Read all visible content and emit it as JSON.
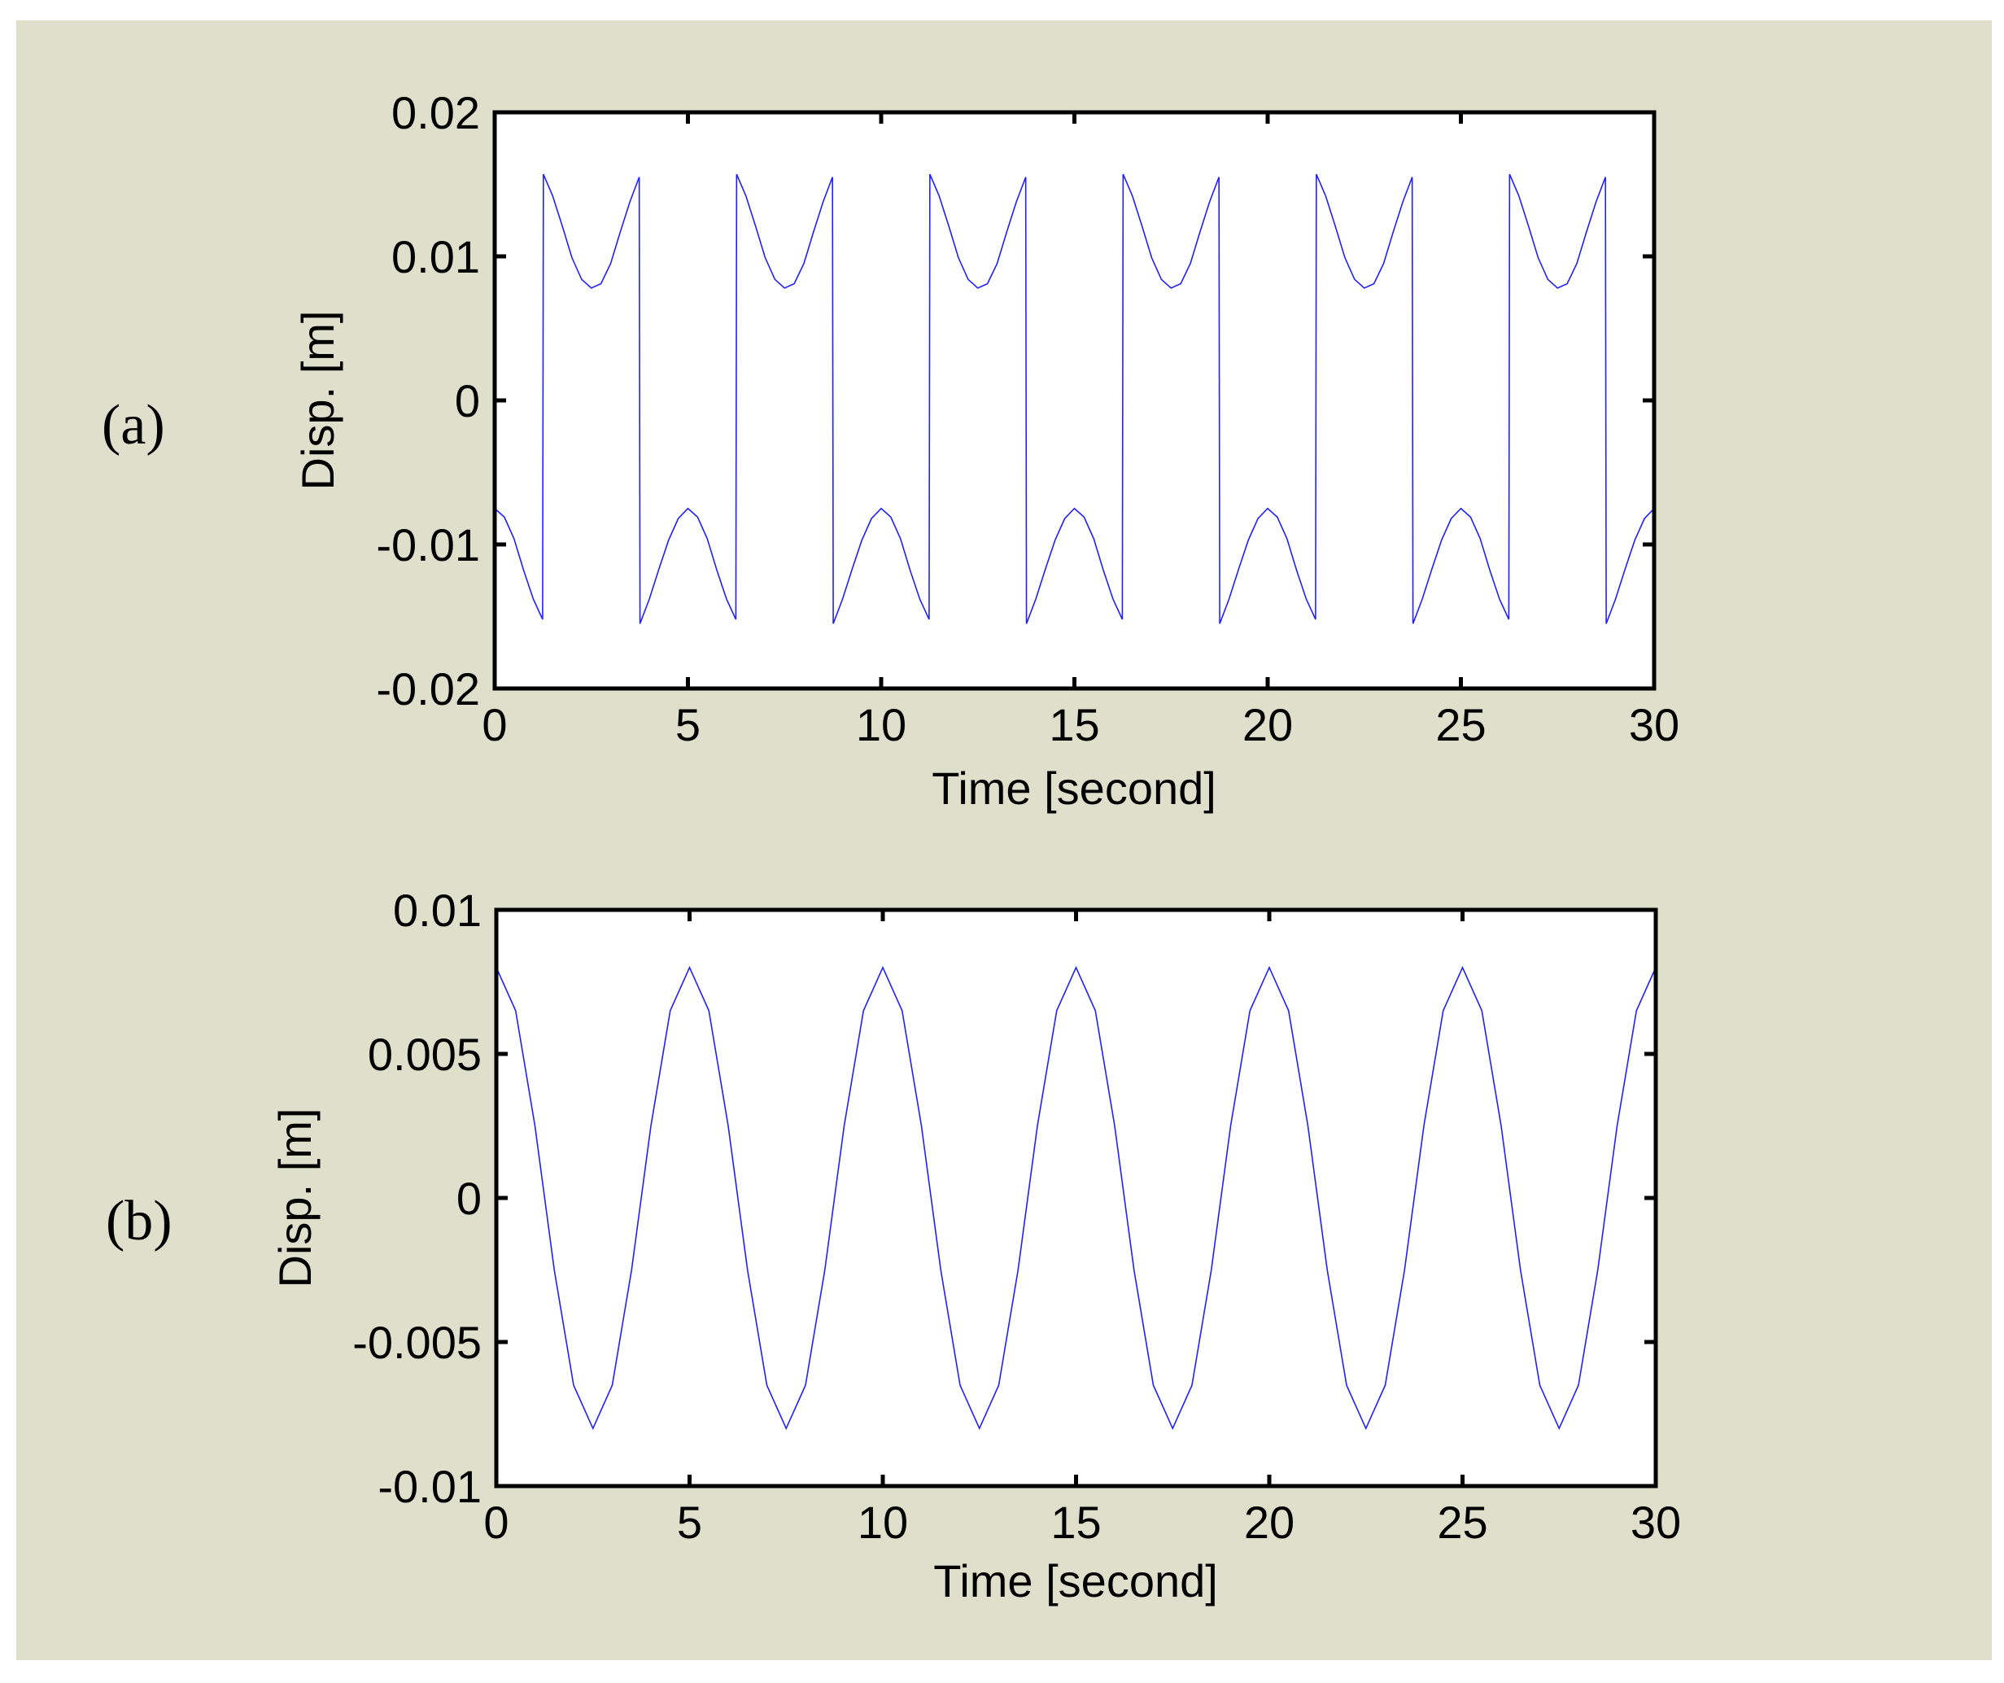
{
  "figure": {
    "background_color": "#dfe0cc",
    "plot_color": "#ffffff",
    "line_color": "#2020ff"
  },
  "chart_data": [
    {
      "type": "line",
      "panel_label": "(a)",
      "xlabel": "Time [second]",
      "ylabel": "Disp. [m]",
      "xlim": [
        0,
        30
      ],
      "ylim": [
        -0.02,
        0.02
      ],
      "x_ticks": [
        0,
        5,
        10,
        15,
        20,
        25,
        30
      ],
      "x_tick_labels": [
        "0",
        "5",
        "10",
        "15",
        "20",
        "25",
        "30"
      ],
      "y_ticks": [
        0.02,
        0.01,
        0,
        -0.01,
        -0.02
      ],
      "y_tick_labels": [
        "0.02",
        "0.01",
        "0",
        "-0.01",
        "-0.02"
      ],
      "grid": false,
      "series": [
        {
          "x": [
            0,
            0.25,
            0.5,
            0.75,
            1.0,
            1.24,
            1.26,
            1.5,
            1.75,
            2.0,
            2.25,
            2.5,
            2.75,
            3.0,
            3.25,
            3.5,
            3.74,
            3.76,
            4.0,
            4.25,
            4.5,
            4.75,
            5.0,
            5.25,
            5.5,
            5.75,
            6.0,
            6.24,
            6.26,
            6.5,
            6.75,
            7.0,
            7.25,
            7.5,
            7.75,
            8.0,
            8.25,
            8.5,
            8.74,
            8.76,
            9.0,
            9.25,
            9.5,
            9.75,
            10.0,
            10.25,
            10.5,
            10.75,
            11.0,
            11.24,
            11.26,
            11.5,
            11.75,
            12.0,
            12.25,
            12.5,
            12.75,
            13.0,
            13.25,
            13.5,
            13.74,
            13.76,
            14.0,
            14.25,
            14.5,
            14.75,
            15.0,
            15.25,
            15.5,
            15.75,
            16.0,
            16.24,
            16.26,
            16.5,
            16.75,
            17.0,
            17.25,
            17.5,
            17.75,
            18.0,
            18.25,
            18.5,
            18.74,
            18.76,
            19.0,
            19.25,
            19.5,
            19.75,
            20.0,
            20.25,
            20.5,
            20.75,
            21.0,
            21.24,
            21.26,
            21.5,
            21.75,
            22.0,
            22.25,
            22.5,
            22.75,
            23.0,
            23.25,
            23.5,
            23.74,
            23.76,
            24.0,
            24.25,
            24.5,
            24.75,
            25.0,
            25.25,
            25.5,
            25.75,
            26.0,
            26.24,
            26.26,
            26.5,
            26.75,
            27.0,
            27.25,
            27.5,
            27.75,
            28.0,
            28.25,
            28.5,
            28.74,
            28.76,
            29.0,
            29.25,
            29.5,
            29.75,
            30.0
          ],
          "y": [
            -0.0075,
            -0.0081,
            -0.0096,
            -0.0118,
            -0.0138,
            -0.0152,
            0.0157,
            0.0142,
            0.0121,
            0.0099,
            0.0084,
            0.0078,
            0.0081,
            0.0095,
            0.0117,
            0.0138,
            0.0155,
            -0.0155,
            -0.0138,
            -0.0117,
            -0.0097,
            -0.0082,
            -0.0075,
            -0.0081,
            -0.0096,
            -0.0118,
            -0.0138,
            -0.0152,
            0.0157,
            0.0142,
            0.0121,
            0.0099,
            0.0084,
            0.0078,
            0.0081,
            0.0095,
            0.0117,
            0.0138,
            0.0155,
            -0.0155,
            -0.0138,
            -0.0117,
            -0.0097,
            -0.0082,
            -0.0075,
            -0.0081,
            -0.0096,
            -0.0118,
            -0.0138,
            -0.0152,
            0.0157,
            0.0142,
            0.0121,
            0.0099,
            0.0084,
            0.0078,
            0.0081,
            0.0095,
            0.0117,
            0.0138,
            0.0155,
            -0.0155,
            -0.0138,
            -0.0117,
            -0.0097,
            -0.0082,
            -0.0075,
            -0.0081,
            -0.0096,
            -0.0118,
            -0.0138,
            -0.0152,
            0.0157,
            0.0142,
            0.0121,
            0.0099,
            0.0084,
            0.0078,
            0.0081,
            0.0095,
            0.0117,
            0.0138,
            0.0155,
            -0.0155,
            -0.0138,
            -0.0117,
            -0.0097,
            -0.0082,
            -0.0075,
            -0.0081,
            -0.0096,
            -0.0118,
            -0.0138,
            -0.0152,
            0.0157,
            0.0142,
            0.0121,
            0.0099,
            0.0084,
            0.0078,
            0.0081,
            0.0095,
            0.0117,
            0.0138,
            0.0155,
            -0.0155,
            -0.0138,
            -0.0117,
            -0.0097,
            -0.0082,
            -0.0075,
            -0.0081,
            -0.0096,
            -0.0118,
            -0.0138,
            -0.0152,
            0.0157,
            0.0142,
            0.0121,
            0.0099,
            0.0084,
            0.0078,
            0.0081,
            0.0095,
            0.0117,
            0.0138,
            0.0155,
            -0.0155,
            -0.0138,
            -0.0117,
            -0.0097,
            -0.0082,
            -0.0075
          ]
        }
      ]
    },
    {
      "type": "line",
      "panel_label": "(b)",
      "xlabel": "Time [second]",
      "ylabel": "Disp. [m]",
      "xlim": [
        0,
        30
      ],
      "ylim": [
        -0.01,
        0.01
      ],
      "x_ticks": [
        0,
        5,
        10,
        15,
        20,
        25,
        30
      ],
      "x_tick_labels": [
        "0",
        "5",
        "10",
        "15",
        "20",
        "25",
        "30"
      ],
      "y_ticks": [
        0.01,
        0.005,
        0,
        -0.005,
        -0.01
      ],
      "y_tick_labels": [
        "0.01",
        "0.005",
        "0",
        "-0.005",
        "-0.01"
      ],
      "grid": false,
      "series": [
        {
          "x": [
            0,
            0.5,
            1.0,
            1.5,
            2.0,
            2.5,
            3.0,
            3.5,
            4.0,
            4.5,
            5.0,
            5.5,
            6.0,
            6.5,
            7.0,
            7.5,
            8.0,
            8.5,
            9.0,
            9.5,
            10.0,
            10.5,
            11.0,
            11.5,
            12.0,
            12.5,
            13.0,
            13.5,
            14.0,
            14.5,
            15.0,
            15.5,
            16.0,
            16.5,
            17.0,
            17.5,
            18.0,
            18.5,
            19.0,
            19.5,
            20.0,
            20.5,
            21.0,
            21.5,
            22.0,
            22.5,
            23.0,
            23.5,
            24.0,
            24.5,
            25.0,
            25.5,
            26.0,
            26.5,
            27.0,
            27.5,
            28.0,
            28.5,
            29.0,
            29.5,
            30.0
          ],
          "y": [
            0.008,
            0.0065,
            0.0025,
            -0.0025,
            -0.0065,
            -0.008,
            -0.0065,
            -0.0025,
            0.0025,
            0.0065,
            0.008,
            0.0065,
            0.0025,
            -0.0025,
            -0.0065,
            -0.008,
            -0.0065,
            -0.0025,
            0.0025,
            0.0065,
            0.008,
            0.0065,
            0.0025,
            -0.0025,
            -0.0065,
            -0.008,
            -0.0065,
            -0.0025,
            0.0025,
            0.0065,
            0.008,
            0.0065,
            0.0025,
            -0.0025,
            -0.0065,
            -0.008,
            -0.0065,
            -0.0025,
            0.0025,
            0.0065,
            0.008,
            0.0065,
            0.0025,
            -0.0025,
            -0.0065,
            -0.008,
            -0.0065,
            -0.0025,
            0.0025,
            0.0065,
            0.008,
            0.0065,
            0.0025,
            -0.0025,
            -0.0065,
            -0.008,
            -0.0065,
            -0.0025,
            0.0025,
            0.0065,
            0.008
          ]
        }
      ]
    }
  ]
}
